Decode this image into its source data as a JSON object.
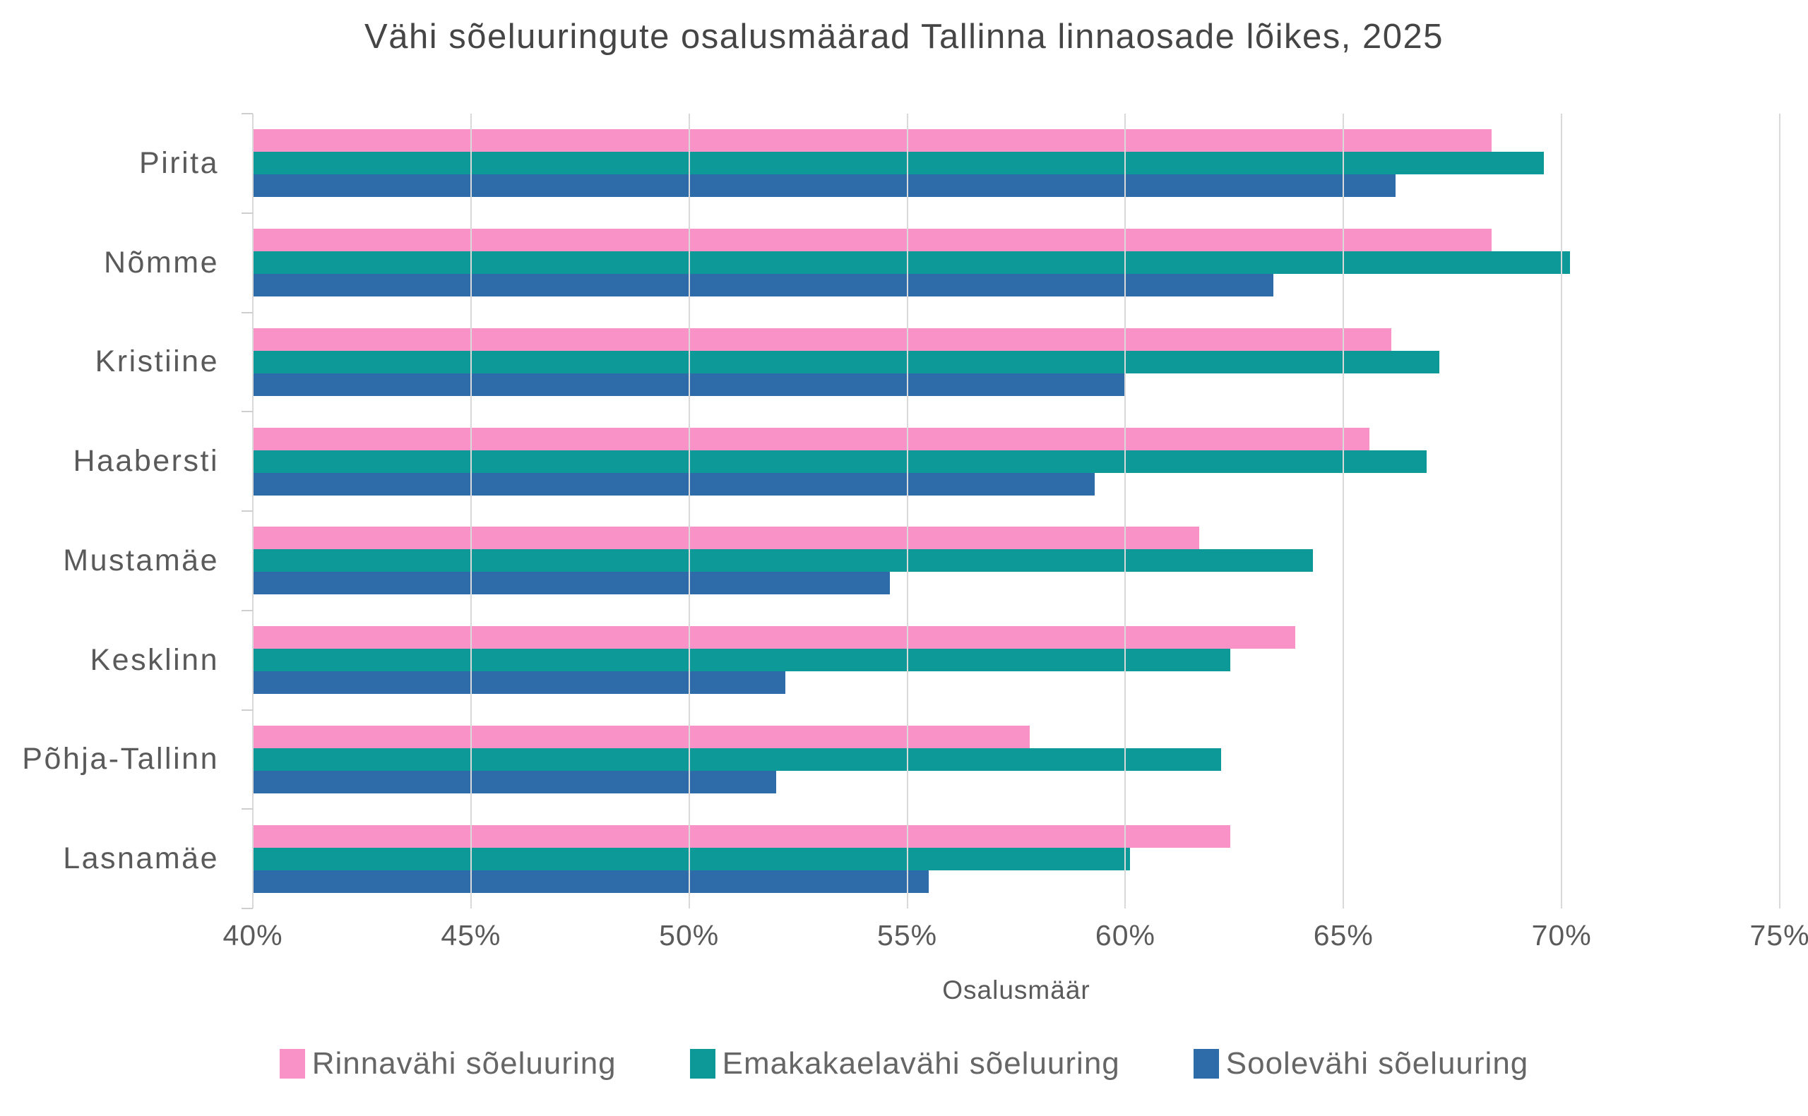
{
  "title": "Vähi sõeluuringute osalusmäärad Tallinna linnaosade lõikes, 2025",
  "chart_data": {
    "type": "bar",
    "orientation": "horizontal",
    "title": "Vähi sõeluuringute osalusmäärad Tallinna linnaosade lõikes, 2025",
    "categories": [
      "Pirita",
      "Nõmme",
      "Kristiine",
      "Haabersti",
      "Mustamäe",
      "Kesklinn",
      "Põhja-Tallinn",
      "Lasnamäe"
    ],
    "series": [
      {
        "name": "Rinnavähi sõeluuring",
        "color": "#f992c6",
        "values": [
          68.4,
          68.4,
          66.1,
          65.6,
          61.7,
          63.9,
          57.8,
          62.4
        ]
      },
      {
        "name": "Emakakaelavähi sõeluuring",
        "color": "#0e9999",
        "values": [
          69.6,
          70.2,
          67.2,
          66.9,
          64.3,
          62.4,
          62.2,
          60.1
        ]
      },
      {
        "name": "Soolevähi sõeluuring",
        "color": "#2d6ca9",
        "values": [
          66.2,
          63.4,
          60.0,
          59.3,
          54.6,
          52.2,
          52.0,
          55.5
        ]
      }
    ],
    "xlabel": "Osalusmäär",
    "ylabel": "",
    "xlim": [
      40,
      75
    ],
    "x_ticks": [
      "40%",
      "45%",
      "50%",
      "55%",
      "60%",
      "65%",
      "70%",
      "75%"
    ],
    "x_tick_values": [
      40,
      45,
      50,
      55,
      60,
      65,
      70,
      75
    ],
    "grid": true,
    "legend_position": "bottom",
    "unit": "%"
  },
  "colors": {
    "background": "#ffffff",
    "gridline": "#d9d9d9",
    "axis": "#cfcfcf",
    "title_text": "#454545",
    "label_text": "#5a5a5a",
    "legend_text": "#666666"
  }
}
